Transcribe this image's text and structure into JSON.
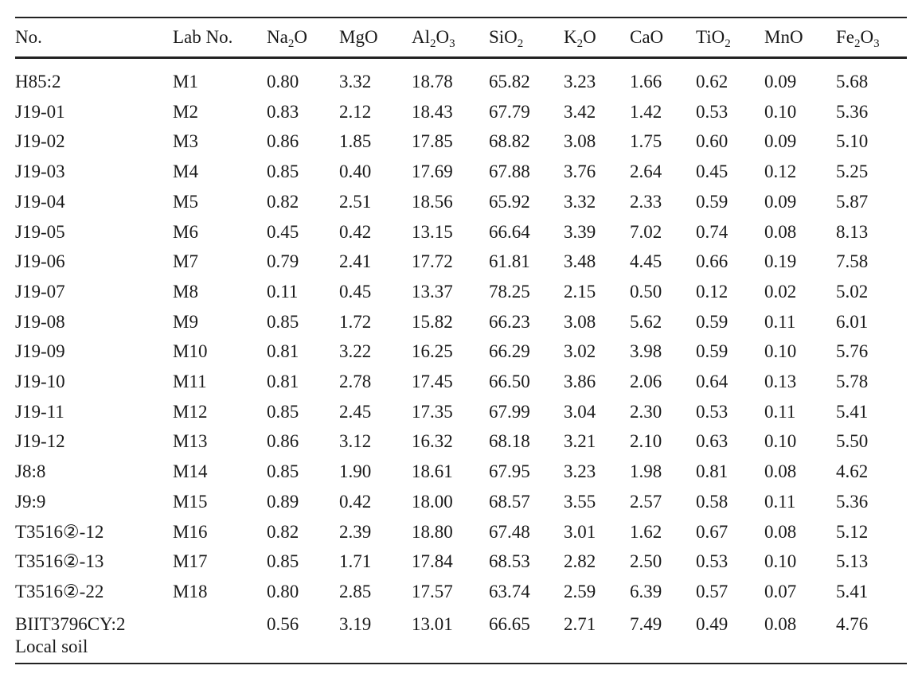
{
  "table": {
    "headers": [
      {
        "base": "No.",
        "parts": []
      },
      {
        "base": "Lab No.",
        "parts": []
      },
      {
        "base": "",
        "parts": [
          {
            "t": "Na"
          },
          {
            "s": "2"
          },
          {
            "t": "O"
          }
        ]
      },
      {
        "base": "MgO",
        "parts": []
      },
      {
        "base": "",
        "parts": [
          {
            "t": "Al"
          },
          {
            "s": "2"
          },
          {
            "t": "O"
          },
          {
            "s": "3"
          }
        ]
      },
      {
        "base": "",
        "parts": [
          {
            "t": "SiO"
          },
          {
            "s": "2"
          }
        ]
      },
      {
        "base": "",
        "parts": [
          {
            "t": "K"
          },
          {
            "s": "2"
          },
          {
            "t": "O"
          }
        ]
      },
      {
        "base": "CaO",
        "parts": []
      },
      {
        "base": "",
        "parts": [
          {
            "t": "TiO"
          },
          {
            "s": "2"
          }
        ]
      },
      {
        "base": "MnO",
        "parts": []
      },
      {
        "base": "",
        "parts": [
          {
            "t": "Fe"
          },
          {
            "s": "2"
          },
          {
            "t": "O"
          },
          {
            "s": "3"
          }
        ]
      }
    ],
    "rows": [
      [
        "H85:2",
        "M1",
        "0.80",
        "3.32",
        "18.78",
        "65.82",
        "3.23",
        "1.66",
        "0.62",
        "0.09",
        "5.68"
      ],
      [
        "J19-01",
        "M2",
        "0.83",
        "2.12",
        "18.43",
        "67.79",
        "3.42",
        "1.42",
        "0.53",
        "0.10",
        "5.36"
      ],
      [
        "J19-02",
        "M3",
        "0.86",
        "1.85",
        "17.85",
        "68.82",
        "3.08",
        "1.75",
        "0.60",
        "0.09",
        "5.10"
      ],
      [
        "J19-03",
        "M4",
        "0.85",
        "0.40",
        "17.69",
        "67.88",
        "3.76",
        "2.64",
        "0.45",
        "0.12",
        "5.25"
      ],
      [
        "J19-04",
        "M5",
        "0.82",
        "2.51",
        "18.56",
        "65.92",
        "3.32",
        "2.33",
        "0.59",
        "0.09",
        "5.87"
      ],
      [
        "J19-05",
        "M6",
        "0.45",
        "0.42",
        "13.15",
        "66.64",
        "3.39",
        "7.02",
        "0.74",
        "0.08",
        "8.13"
      ],
      [
        "J19-06",
        "M7",
        "0.79",
        "2.41",
        "17.72",
        "61.81",
        "3.48",
        "4.45",
        "0.66",
        "0.19",
        "7.58"
      ],
      [
        "J19-07",
        "M8",
        "0.11",
        "0.45",
        "13.37",
        "78.25",
        "2.15",
        "0.50",
        "0.12",
        "0.02",
        "5.02"
      ],
      [
        "J19-08",
        "M9",
        "0.85",
        "1.72",
        "15.82",
        "66.23",
        "3.08",
        "5.62",
        "0.59",
        "0.11",
        "6.01"
      ],
      [
        "J19-09",
        "M10",
        "0.81",
        "3.22",
        "16.25",
        "66.29",
        "3.02",
        "3.98",
        "0.59",
        "0.10",
        "5.76"
      ],
      [
        "J19-10",
        "M11",
        "0.81",
        "2.78",
        "17.45",
        "66.50",
        "3.86",
        "2.06",
        "0.64",
        "0.13",
        "5.78"
      ],
      [
        "J19-11",
        "M12",
        "0.85",
        "2.45",
        "17.35",
        "67.99",
        "3.04",
        "2.30",
        "0.53",
        "0.11",
        "5.41"
      ],
      [
        "J19-12",
        "M13",
        "0.86",
        "3.12",
        "16.32",
        "68.18",
        "3.21",
        "2.10",
        "0.63",
        "0.10",
        "5.50"
      ],
      [
        "J8:8",
        "M14",
        "0.85",
        "1.90",
        "18.61",
        "67.95",
        "3.23",
        "1.98",
        "0.81",
        "0.08",
        "4.62"
      ],
      [
        "J9:9",
        "M15",
        "0.89",
        "0.42",
        "18.00",
        "68.57",
        "3.55",
        "2.57",
        "0.58",
        "0.11",
        "5.36"
      ],
      [
        "T3516②-12",
        "M16",
        "0.82",
        "2.39",
        "18.80",
        "67.48",
        "3.01",
        "1.62",
        "0.67",
        "0.08",
        "5.12"
      ],
      [
        "T3516②-13",
        "M17",
        "0.85",
        "1.71",
        "17.84",
        "68.53",
        "2.82",
        "2.50",
        "0.53",
        "0.10",
        "5.13"
      ],
      [
        "T3516②-22",
        "M18",
        "0.80",
        "2.85",
        "17.57",
        "63.74",
        "2.59",
        "6.39",
        "0.57",
        "0.07",
        "5.41"
      ]
    ],
    "last_row": {
      "no_line1": "BIIT3796CY:2",
      "no_line2": "Local soil",
      "lab": "",
      "values": [
        "0.56",
        "3.19",
        "13.01",
        "66.65",
        "2.71",
        "7.49",
        "0.49",
        "0.08",
        "4.76"
      ]
    }
  }
}
